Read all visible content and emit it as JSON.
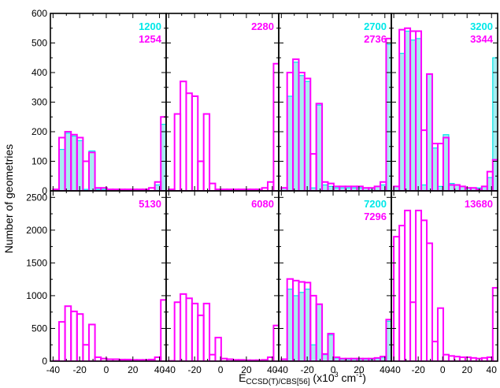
{
  "colors": {
    "cyan": "#00e8e8",
    "cyan_fill": "#a8ecf0",
    "magenta": "#ff00ff",
    "frame": "#000000"
  },
  "axes": {
    "ylabel": "Number of geometries",
    "xlabel_main": "E",
    "xlabel_sub": "CCSD(T)/CBS[56]",
    "xlabel_tail_a": " (x10",
    "xlabel_sup1": "3",
    "xlabel_tail_b": " cm",
    "xlabel_sup2": "-1",
    "xlabel_tail_c": ")",
    "x_ticks": [
      "-40",
      "-20",
      "0",
      "20",
      "40"
    ],
    "x_tick_values": [
      -40,
      -20,
      0,
      20,
      40
    ],
    "top_y_ticks": [
      "600",
      "500",
      "400",
      "300",
      "200",
      "100",
      "0"
    ],
    "top_y_tick_values": [
      600,
      500,
      400,
      300,
      200,
      100,
      0
    ],
    "bottom_y_ticks": [
      "2500",
      "2000",
      "1500",
      "1000",
      "500",
      "0"
    ],
    "bottom_y_tick_values": [
      2500,
      2000,
      1500,
      1000,
      500,
      0
    ]
  },
  "chart_data": [
    {
      "type": "bar",
      "row": 0,
      "col": 0,
      "xlim": [
        -42,
        45
      ],
      "ylim": [
        0,
        600
      ],
      "bins": {
        "start": -40,
        "width": 4.5,
        "count": 19
      },
      "labels": {
        "cyan": "1200",
        "magenta": "1254"
      },
      "series": [
        {
          "name": "1200",
          "color": "cyan",
          "values": [
            5,
            140,
            195,
            185,
            170,
            5,
            135,
            5,
            5,
            0,
            0,
            0,
            0,
            0,
            0,
            0,
            0,
            20,
            225
          ]
        },
        {
          "name": "1254",
          "color": "magenta",
          "values": [
            5,
            180,
            200,
            190,
            180,
            100,
            130,
            10,
            10,
            5,
            5,
            5,
            5,
            5,
            5,
            5,
            10,
            30,
            250
          ]
        }
      ]
    },
    {
      "type": "bar",
      "row": 0,
      "col": 1,
      "xlim": [
        -42,
        45
      ],
      "ylim": [
        0,
        600
      ],
      "bins": {
        "start": -40,
        "width": 4.5,
        "count": 19
      },
      "labels": {
        "magenta": "2280"
      },
      "series": [
        {
          "name": "2280",
          "color": "magenta",
          "values": [
            5,
            260,
            370,
            330,
            320,
            100,
            260,
            25,
            5,
            5,
            5,
            5,
            5,
            5,
            5,
            5,
            10,
            30,
            430
          ]
        }
      ]
    },
    {
      "type": "bar",
      "row": 0,
      "col": 2,
      "xlim": [
        -42,
        45
      ],
      "ylim": [
        0,
        600
      ],
      "bins": {
        "start": -40,
        "width": 4.5,
        "count": 19
      },
      "labels": {
        "cyan": "2700",
        "magenta": "2736"
      },
      "series": [
        {
          "name": "2700",
          "color": "cyan",
          "values": [
            10,
            320,
            435,
            390,
            370,
            10,
            290,
            20,
            15,
            10,
            10,
            10,
            10,
            10,
            10,
            10,
            15,
            20,
            495
          ]
        },
        {
          "name": "2736",
          "color": "magenta",
          "values": [
            10,
            400,
            445,
            400,
            380,
            125,
            295,
            30,
            25,
            15,
            15,
            15,
            15,
            15,
            10,
            10,
            15,
            30,
            515
          ]
        }
      ]
    },
    {
      "type": "bar",
      "row": 0,
      "col": 3,
      "xlim": [
        -42,
        45
      ],
      "ylim": [
        0,
        600
      ],
      "bins": {
        "start": -40,
        "width": 4.5,
        "count": 19
      },
      "labels": {
        "cyan": "3200",
        "magenta": "3344"
      },
      "series": [
        {
          "name": "3200",
          "color": "cyan",
          "values": [
            15,
            465,
            540,
            510,
            515,
            20,
            395,
            145,
            15,
            190,
            25,
            20,
            15,
            10,
            10,
            10,
            15,
            45,
            450
          ]
        },
        {
          "name": "3344",
          "color": "magenta",
          "values": [
            15,
            545,
            550,
            540,
            540,
            205,
            395,
            160,
            160,
            180,
            20,
            20,
            15,
            10,
            10,
            5,
            15,
            65,
            105
          ]
        }
      ]
    },
    {
      "type": "bar",
      "row": 1,
      "col": 0,
      "xlim": [
        -42,
        45
      ],
      "ylim": [
        0,
        2600
      ],
      "bins": {
        "start": -40,
        "width": 4.5,
        "count": 19
      },
      "labels": {
        "magenta": "5130"
      },
      "series": [
        {
          "name": "5130",
          "color": "magenta",
          "values": [
            5,
            600,
            840,
            760,
            720,
            250,
            560,
            60,
            40,
            30,
            30,
            25,
            25,
            20,
            20,
            20,
            25,
            60,
            935
          ]
        }
      ]
    },
    {
      "type": "bar",
      "row": 1,
      "col": 1,
      "xlim": [
        -42,
        45
      ],
      "ylim": [
        0,
        2600
      ],
      "bins": {
        "start": -40,
        "width": 4.5,
        "count": 19
      },
      "labels": {
        "magenta": "6080"
      },
      "series": [
        {
          "name": "6080",
          "color": "magenta",
          "values": [
            5,
            900,
            1025,
            960,
            880,
            700,
            880,
            100,
            360,
            40,
            30,
            20,
            20,
            15,
            15,
            15,
            20,
            60,
            545
          ]
        }
      ]
    },
    {
      "type": "bar",
      "row": 1,
      "col": 2,
      "xlim": [
        -42,
        45
      ],
      "ylim": [
        0,
        2600
      ],
      "bins": {
        "start": -40,
        "width": 4.5,
        "count": 19
      },
      "labels": {
        "cyan": "7200",
        "magenta": "7296"
      },
      "series": [
        {
          "name": "7200",
          "color": "cyan",
          "values": [
            30,
            1100,
            1000,
            1050,
            1100,
            250,
            870,
            100,
            400,
            50,
            30,
            30,
            30,
            30,
            30,
            30,
            40,
            60,
            610
          ]
        },
        {
          "name": "7296",
          "color": "magenta",
          "values": [
            30,
            1255,
            1230,
            1210,
            1200,
            1000,
            870,
            110,
            420,
            60,
            40,
            40,
            40,
            40,
            40,
            40,
            50,
            70,
            635
          ]
        }
      ]
    },
    {
      "type": "bar",
      "row": 1,
      "col": 3,
      "xlim": [
        -42,
        45
      ],
      "ylim": [
        0,
        2600
      ],
      "bins": {
        "start": -40,
        "width": 4.5,
        "count": 19
      },
      "labels": {
        "magenta": "13680"
      },
      "series": [
        {
          "name": "13680",
          "color": "magenta",
          "values": [
            1900,
            2070,
            2300,
            900,
            2300,
            2150,
            1800,
            300,
            810,
            100,
            80,
            70,
            60,
            60,
            50,
            40,
            50,
            60,
            1120
          ]
        }
      ]
    }
  ]
}
